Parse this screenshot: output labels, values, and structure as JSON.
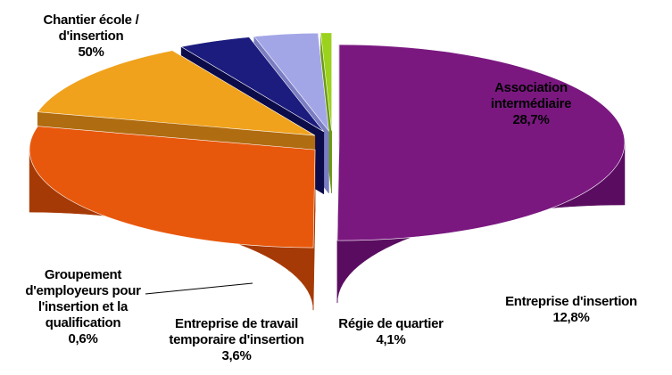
{
  "chart_data": {
    "type": "pie",
    "style": "3d-exploded",
    "title": "",
    "slices": [
      {
        "name": "Chantier école / d'insertion",
        "label_lines": [
          "Chantier école /",
          "d'insertion"
        ],
        "value": 50,
        "value_label": "50%",
        "color": "#7a1880",
        "side_color": "#5a0d60"
      },
      {
        "name": "Association intermédiaire",
        "label_lines": [
          "Association",
          "intermédiaire"
        ],
        "value": 28.7,
        "value_label": "28,7%",
        "color": "#e8580c",
        "side_color": "#a63a06"
      },
      {
        "name": "Entreprise d'insertion",
        "label_lines": [
          "Entreprise d'insertion"
        ],
        "value": 12.8,
        "value_label": "12,8%",
        "color": "#f0a21c",
        "side_color": "#b06c10"
      },
      {
        "name": "Régie de quartier",
        "label_lines": [
          "Régie de quartier"
        ],
        "value": 4.1,
        "value_label": "4,1%",
        "color": "#1c1c7e",
        "side_color": "#0c0c4a"
      },
      {
        "name": "Entreprise de travail temporaire d'insertion",
        "label_lines": [
          "Entreprise de travail",
          "temporaire d'insertion"
        ],
        "value": 3.6,
        "value_label": "3,6%",
        "color": "#a3a6e6",
        "side_color": "#7a7dc2"
      },
      {
        "name": "Groupement d'employeurs pour l'insertion et la qualification",
        "label_lines": [
          "Groupement",
          "d'employeurs pour",
          "l'insertion et la",
          "qualification"
        ],
        "value": 0.6,
        "value_label": "0,6%",
        "color": "#9bd21c",
        "side_color": "#6c9a10"
      }
    ]
  }
}
